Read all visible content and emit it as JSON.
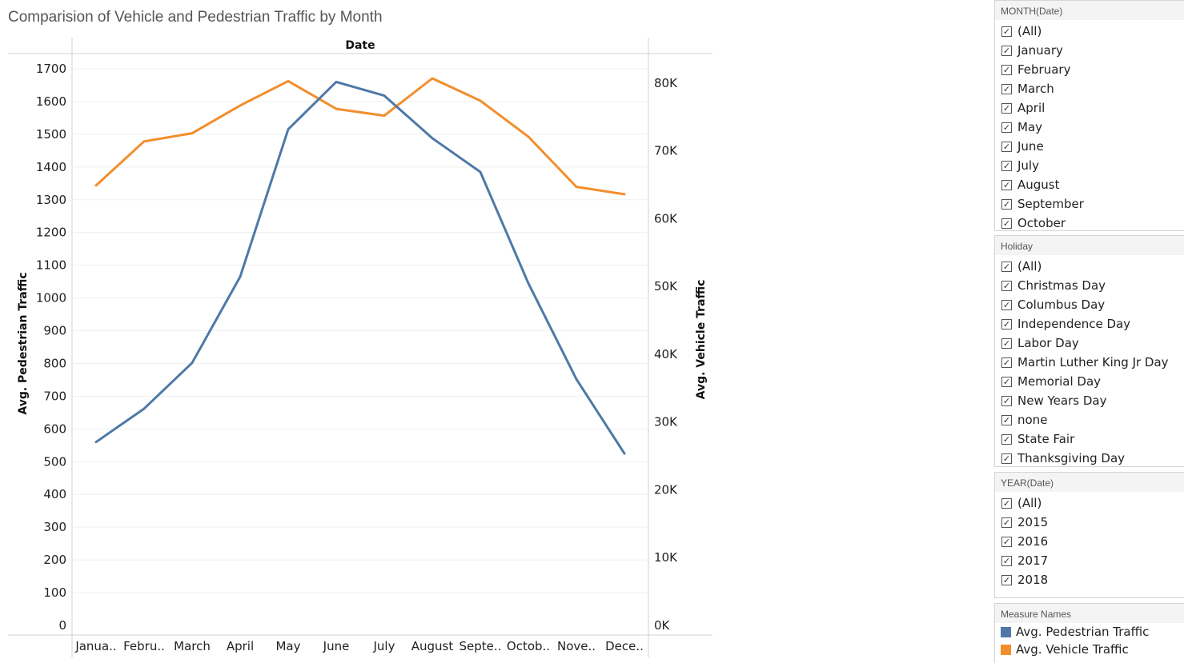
{
  "title": "Comparision of Vehicle and Pedestrian Traffic by Month",
  "chart_data": {
    "type": "line",
    "title": "Comparision of Vehicle and Pedestrian Traffic by Month",
    "header_label": "Date",
    "categories": [
      "Janua..",
      "Febru..",
      "March",
      "April",
      "May",
      "June",
      "July",
      "August",
      "Septe..",
      "Octob..",
      "Nove..",
      "Dece.."
    ],
    "left_axis": {
      "label": "Avg. Pedestrian Traffic",
      "range": [
        0,
        1700
      ],
      "ticks": [
        "0",
        "100",
        "200",
        "300",
        "400",
        "500",
        "600",
        "700",
        "800",
        "900",
        "1000",
        "1100",
        "1200",
        "1300",
        "1400",
        "1500",
        "1600",
        "1700"
      ]
    },
    "right_axis": {
      "label": "Avg. Vehicle Traffic",
      "range": [
        0,
        84000
      ],
      "ticks": [
        {
          "value": 0,
          "label": "0K"
        },
        {
          "value": 10000,
          "label": "10K"
        },
        {
          "value": 20000,
          "label": "20K"
        },
        {
          "value": 30000,
          "label": "30K"
        },
        {
          "value": 40000,
          "label": "40K"
        },
        {
          "value": 50000,
          "label": "50K"
        },
        {
          "value": 60000,
          "label": "60K"
        },
        {
          "value": 70000,
          "label": "70K"
        },
        {
          "value": 80000,
          "label": "80K"
        }
      ]
    },
    "series": [
      {
        "name": "Avg. Pedestrian Traffic",
        "axis": "left",
        "color": "#4e79a7",
        "values": [
          560,
          662,
          802,
          1065,
          1515,
          1660,
          1618,
          1488,
          1385,
          1045,
          752,
          525
        ]
      },
      {
        "name": "Avg. Vehicle Traffic",
        "axis": "right",
        "color": "#f28e2b",
        "values": [
          64900,
          71400,
          72600,
          76700,
          80300,
          76200,
          75200,
          80700,
          77400,
          72100,
          64700,
          63600
        ]
      }
    ],
    "grid": true
  },
  "filters": [
    {
      "title": "MONTH(Date)",
      "items": [
        "(All)",
        "January",
        "February",
        "March",
        "April",
        "May",
        "June",
        "July",
        "August",
        "September",
        "October"
      ]
    },
    {
      "title": "Holiday",
      "items": [
        "(All)",
        "Christmas Day",
        "Columbus Day",
        "Independence Day",
        "Labor Day",
        "Martin Luther King Jr Day",
        "Memorial Day",
        "New Years Day",
        "none",
        "State Fair",
        "Thanksgiving Day"
      ]
    },
    {
      "title": "YEAR(Date)",
      "items": [
        "(All)",
        "2015",
        "2016",
        "2017",
        "2018"
      ]
    }
  ],
  "checkmark": "✓",
  "legend": {
    "title": "Measure Names",
    "items": [
      {
        "label": "Avg. Pedestrian Traffic",
        "color": "#4e79a7"
      },
      {
        "label": "Avg. Vehicle Traffic",
        "color": "#f28e2b"
      }
    ]
  }
}
